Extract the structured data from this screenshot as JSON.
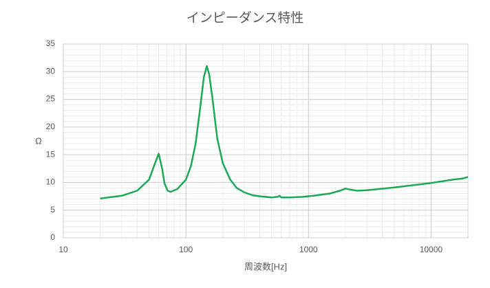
{
  "chart_data": {
    "type": "line",
    "title": "インピーダンス特性",
    "x_label": "周波数[Hz]",
    "y_label": "Ω",
    "x_scale": "log",
    "grid": true,
    "minor_grid": true,
    "xlim": [
      10,
      20000
    ],
    "xticks": [
      10,
      100,
      1000,
      10000
    ],
    "ylim": [
      0,
      35
    ],
    "yticks": [
      0,
      5,
      10,
      15,
      20,
      25,
      30,
      35
    ],
    "series": [
      {
        "color": "#1aaa55",
        "x": [
          20,
          30,
          40,
          50,
          55,
          60,
          64,
          67,
          71,
          75,
          85,
          100,
          110,
          120,
          130,
          140,
          148,
          155,
          165,
          180,
          200,
          230,
          260,
          300,
          350,
          400,
          500,
          560,
          580,
          600,
          700,
          900,
          1100,
          1500,
          1800,
          2000,
          2200,
          2500,
          3000,
          5000,
          10000,
          15000,
          18000,
          20000
        ],
        "values": [
          7.1,
          7.6,
          8.5,
          10.5,
          13,
          15.2,
          12.5,
          9.8,
          8.5,
          8.3,
          8.8,
          10.5,
          13,
          17,
          23,
          29,
          31,
          29.5,
          25,
          18,
          13.5,
          10.5,
          9,
          8.2,
          7.7,
          7.5,
          7.3,
          7.4,
          7.6,
          7.3,
          7.3,
          7.4,
          7.6,
          8.0,
          8.5,
          8.9,
          8.7,
          8.5,
          8.6,
          9.1,
          9.9,
          10.5,
          10.7,
          11.0
        ]
      }
    ]
  }
}
